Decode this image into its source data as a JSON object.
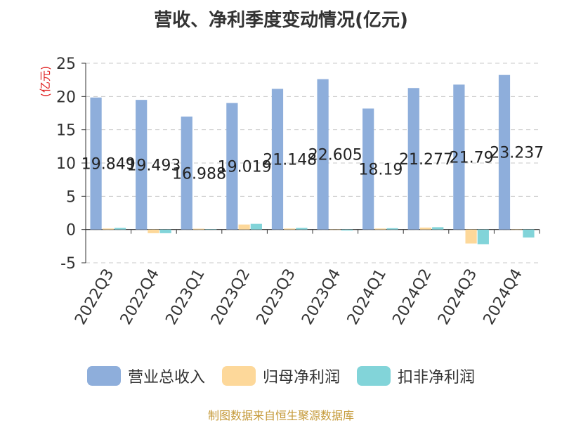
{
  "chart_data": {
    "type": "bar",
    "title": "营收、净利季度变动情况(亿元)",
    "ylabel": "(亿元)",
    "xlabel": "",
    "ylim": [
      -5,
      25
    ],
    "yticks": [
      25,
      20,
      15,
      10,
      5,
      0,
      -5
    ],
    "grid": true,
    "legend": "bottom",
    "categories": [
      "2022Q3",
      "2022Q4",
      "2023Q1",
      "2023Q2",
      "2023Q3",
      "2023Q4",
      "2024Q1",
      "2024Q2",
      "2024Q3",
      "2024Q4"
    ],
    "series": [
      {
        "name": "营业总收入",
        "color": "#8eaedb",
        "values": [
          19.849,
          19.493,
          16.988,
          19.019,
          21.148,
          22.605,
          18.19,
          21.277,
          21.79,
          23.237
        ],
        "labels": [
          "19.849",
          "19.493",
          "16.988",
          "19.019",
          "21.148",
          "22.605",
          "18.19",
          "21.277",
          "21.79",
          "23.237"
        ]
      },
      {
        "name": "归母净利润",
        "color": "#fdd89a",
        "values": [
          0.15,
          -0.55,
          0.12,
          0.75,
          0.15,
          -0.05,
          0.15,
          0.3,
          -2.1,
          -0.05
        ]
      },
      {
        "name": "扣非净利润",
        "color": "#82d4d9",
        "values": [
          0.25,
          -0.55,
          0.05,
          0.85,
          0.25,
          -0.15,
          0.2,
          0.35,
          -2.2,
          -1.2
        ]
      }
    ]
  },
  "source": "制图数据来自恒生聚源数据库"
}
